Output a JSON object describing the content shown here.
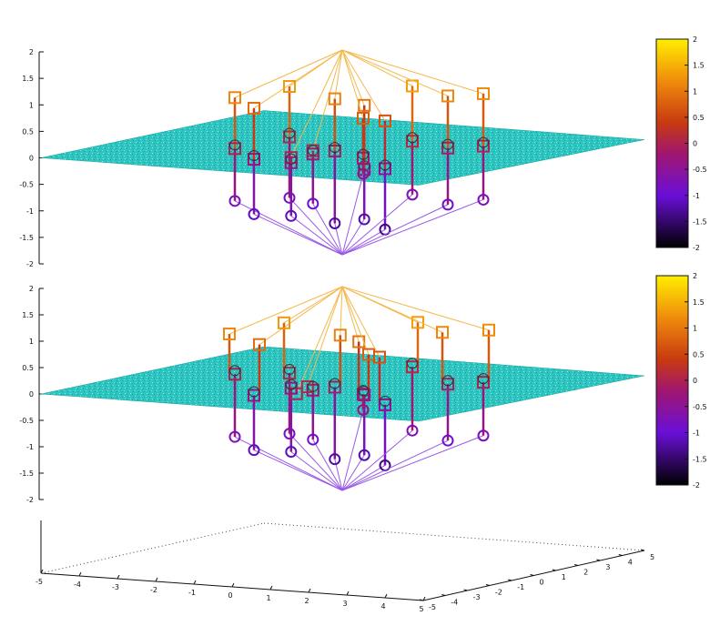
{
  "colors": {
    "plane": "#2ec4c0",
    "plane_dark": "#1aa8a6",
    "axis": "#111111",
    "grid_dot": "#444444"
  },
  "chart_data": [
    {
      "type": "scatter",
      "panel": "top",
      "zlim": [
        -2,
        2
      ],
      "z_ticks": [
        "2",
        "1.5",
        "1",
        "0.5",
        "0",
        "-0.5",
        "-1",
        "-1.5",
        "-2"
      ],
      "colorbar": {
        "range": [
          -2,
          2
        ],
        "ticks": [
          "2",
          "1.5",
          "1",
          "0.5",
          "0",
          "-0.5",
          "-1",
          "-1.5",
          "-2"
        ]
      },
      "plane_z": 0,
      "hub_top_z": 2,
      "hub_bottom_z": -2,
      "points": [
        {
          "x": -4.2,
          "y": -1.0,
          "z_plane": 0.2,
          "z_high": 1.15,
          "z_low": -0.8
        },
        {
          "x": -3.8,
          "y": 0.5,
          "z_plane": -0.1,
          "z_high": 0.9,
          "z_low": -1.1
        },
        {
          "x": -2.6,
          "y": 1.0,
          "z_plane": 0.3,
          "z_high": 1.3,
          "z_low": -0.8
        },
        {
          "x": -2.3,
          "y": -0.2,
          "z_plane": -0.1,
          "z_high": 0.0,
          "z_low": -1.1
        },
        {
          "x": -1.7,
          "y": 0.8,
          "z_plane": 0.0,
          "z_high": 0.1,
          "z_low": -0.9
        },
        {
          "x": -0.8,
          "y": 0.3,
          "z_plane": 0.1,
          "z_high": 1.1,
          "z_low": -1.25
        },
        {
          "x": 0.1,
          "y": 1.2,
          "z_plane": -0.3,
          "z_high": 0.95,
          "z_low": -1.2
        },
        {
          "x": 0.3,
          "y": 0.0,
          "z_plane": 0.0,
          "z_high": 0.75,
          "z_low": -0.3
        },
        {
          "x": 0.8,
          "y": 1.5,
          "z_plane": -0.3,
          "z_high": 0.65,
          "z_low": -1.4
        },
        {
          "x": 2.0,
          "y": 0.5,
          "z_plane": 0.3,
          "z_high": 1.35,
          "z_low": -0.7
        },
        {
          "x": 3.2,
          "y": 1.0,
          "z_plane": 0.15,
          "z_high": 1.15,
          "z_low": -0.9
        },
        {
          "x": 4.5,
          "y": 1.0,
          "z_plane": 0.2,
          "z_high": 1.2,
          "z_low": -0.8
        }
      ]
    },
    {
      "type": "scatter",
      "panel": "bottom",
      "zlim": [
        -2,
        2
      ],
      "z_ticks": [
        "2",
        "1.5",
        "1",
        "0.5",
        "0",
        "-0.5",
        "-1",
        "-1.5",
        "-2"
      ],
      "colorbar": {
        "range": [
          -2,
          2
        ],
        "ticks": [
          "2",
          "1.5",
          "1",
          "0.5",
          "0",
          "-0.5",
          "-1",
          "-1.5",
          "-2"
        ]
      },
      "plane_z": 0,
      "hub_top_z": 2,
      "hub_bottom_z": -2
    },
    {
      "type": "axes",
      "panel": "base",
      "x_ticks": [
        "-5",
        "-4",
        "-3",
        "-2",
        "-1",
        "0",
        "1",
        "2",
        "3",
        "4",
        "5"
      ],
      "y_ticks": [
        "-5",
        "-4",
        "-3",
        "-2",
        "-1",
        "0",
        "1",
        "2",
        "3",
        "4",
        "5"
      ]
    }
  ]
}
